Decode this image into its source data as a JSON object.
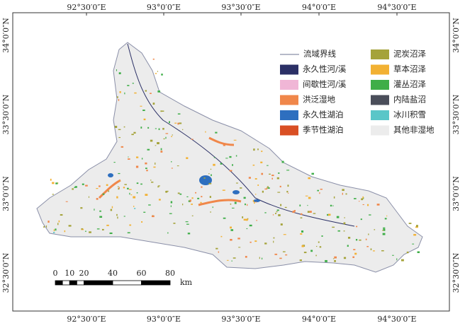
{
  "map": {
    "longitude_labels": [
      "92°30′0″E",
      "93°0′0″E",
      "93°30′0″E",
      "94°0′0″E",
      "94°30′0″E"
    ],
    "latitude_labels": [
      "34°0′0″N",
      "33°30′0″N",
      "33°0′0″N",
      "32°30′0″N"
    ],
    "legend": {
      "boundary": {
        "label": "流域界线",
        "color": "#8a8fa8"
      },
      "items": [
        {
          "label": "永久性河/溪",
          "color": "#2b3066"
        },
        {
          "label": "间歇性河/溪",
          "color": "#f0b6d6"
        },
        {
          "label": "洪泛湿地",
          "color": "#f0874a"
        },
        {
          "label": "永久性湖泊",
          "color": "#2e6fbf"
        },
        {
          "label": "季节性湖泊",
          "color": "#d94f24"
        },
        {
          "label": "泥炭沼泽",
          "color": "#a5a33a"
        },
        {
          "label": "草本沼泽",
          "color": "#f2b133"
        },
        {
          "label": "灌丛沼泽",
          "color": "#3fae48"
        },
        {
          "label": "内陆盐沼",
          "color": "#4a4e5a"
        },
        {
          "label": "冰川积雪",
          "color": "#5ac6c8"
        },
        {
          "label": "其他非湿地",
          "color": "#ececec"
        }
      ]
    },
    "scale_bar": {
      "ticks": [
        0,
        10,
        20,
        40,
        60,
        80
      ],
      "unit": "km"
    }
  }
}
